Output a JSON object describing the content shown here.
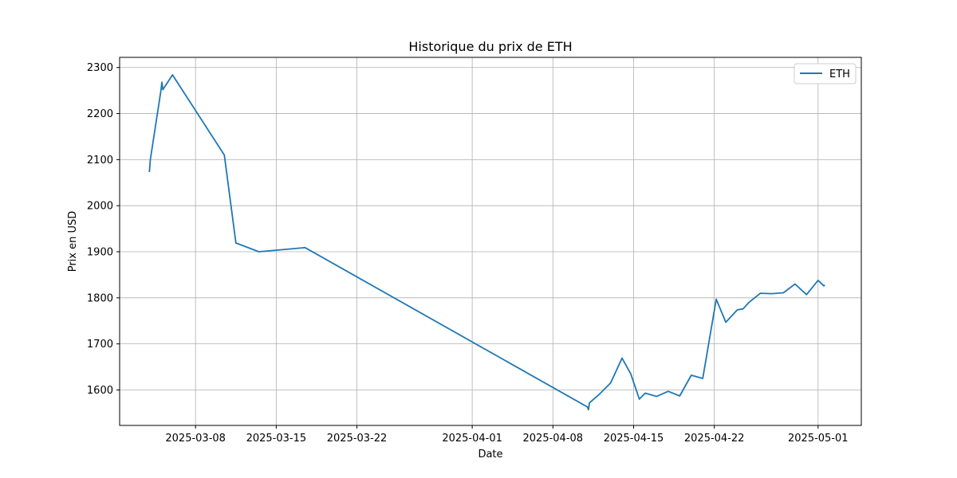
{
  "chart_data": {
    "type": "line",
    "title": "Historique du prix de ETH",
    "xlabel": "Date",
    "ylabel": "Prix en USD",
    "grid": true,
    "legend_position": "top-right",
    "x_ticks": [
      "2025-03-08",
      "2025-03-15",
      "2025-03-22",
      "2025-04-01",
      "2025-04-08",
      "2025-04-15",
      "2025-04-22",
      "2025-05-01"
    ],
    "y_ticks": [
      1600,
      1700,
      1800,
      1900,
      2000,
      2100,
      2200,
      2300
    ],
    "xlim": [
      "2025-03-01T10:00",
      "2025-05-04T18:00"
    ],
    "ylim": [
      1523,
      2322
    ],
    "series": [
      {
        "name": "ETH",
        "color": "#1f77b4",
        "x": [
          "2025-03-04T00:00",
          "2025-03-04T02:00",
          "2025-03-05T00:00",
          "2025-03-05T02:00",
          "2025-03-05T04:00",
          "2025-03-06T00:00",
          "2025-03-10T12:00",
          "2025-03-11T12:00",
          "2025-03-13T12:00",
          "2025-03-17T12:00",
          "2025-04-11T00:00",
          "2025-04-11T02:00",
          "2025-04-11T04:00",
          "2025-04-12T00:00",
          "2025-04-13T00:00",
          "2025-04-14T00:00",
          "2025-04-14T18:00",
          "2025-04-15T12:00",
          "2025-04-16T00:00",
          "2025-04-17T00:00",
          "2025-04-18T00:00",
          "2025-04-19T00:00",
          "2025-04-20T00:00",
          "2025-04-21T00:00",
          "2025-04-22T04:00",
          "2025-04-23T00:00",
          "2025-04-24T00:00",
          "2025-04-24T12:00",
          "2025-04-25T00:00",
          "2025-04-26T00:00",
          "2025-04-27T00:00",
          "2025-04-28T00:00",
          "2025-04-29T00:00",
          "2025-04-30T00:00",
          "2025-05-01T00:00",
          "2025-05-01T12:00",
          "2025-05-01T14:00"
        ],
        "values": [
          2073,
          2100,
          2250,
          2268,
          2252,
          2284,
          2110,
          1919,
          1900,
          1909,
          1563,
          1557,
          1572,
          1590,
          1615,
          1669,
          1635,
          1580,
          1593,
          1586,
          1597,
          1587,
          1632,
          1625,
          1797,
          1747,
          1774,
          1776,
          1790,
          1810,
          1809,
          1811,
          1830,
          1807,
          1838,
          1826,
          1828
        ]
      }
    ]
  }
}
